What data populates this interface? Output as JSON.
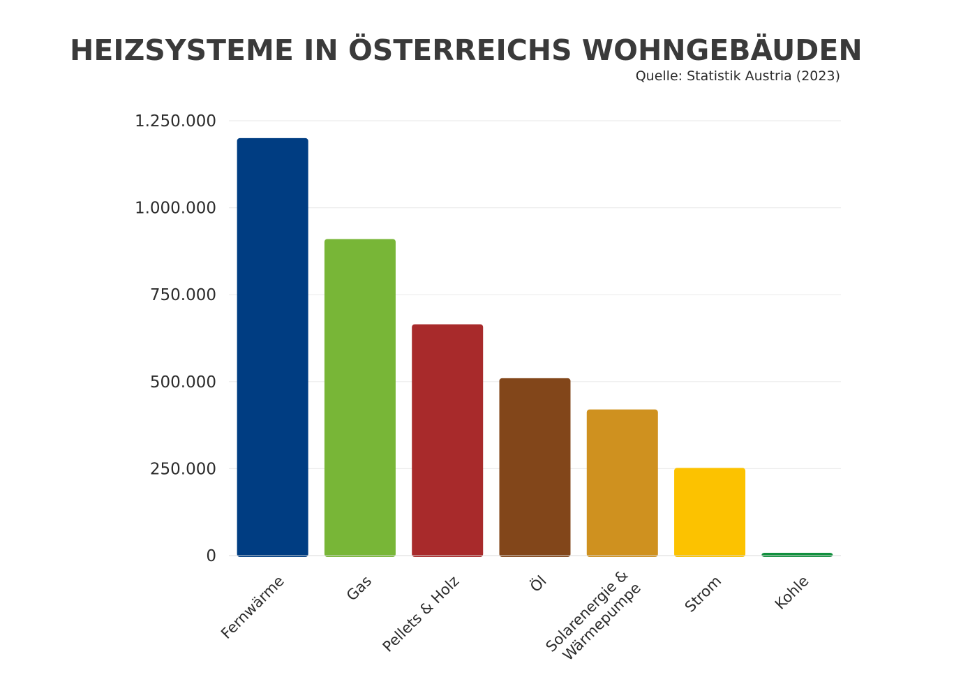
{
  "header": {
    "title": "HEIZSYSTEME IN ÖSTERREICHS WOHNGEBÄUDEN",
    "source": "Quelle: Statistik Austria (2023)"
  },
  "chart_data": {
    "type": "bar",
    "title": "HEIZSYSTEME IN ÖSTERREICHS WOHNGEBÄUDEN",
    "subtitle": "Quelle: Statistik Austria (2023)",
    "xlabel": "",
    "ylabel": "",
    "ylim": [
      0,
      1250000
    ],
    "yticks": [
      0,
      250000,
      500000,
      750000,
      1000000,
      1250000
    ],
    "ytick_labels": [
      "0",
      "250.000",
      "500.000",
      "750.000",
      "1.000.000",
      "1.250.000"
    ],
    "grid": true,
    "legend": "none",
    "categories": [
      "Fernwärme",
      "Gas",
      "Pellets & Holz",
      "Öl",
      "Solarenergie & Wärmepumpe",
      "Strom",
      "Kohle"
    ],
    "category_lines": [
      [
        "Fernwärme"
      ],
      [
        "Gas"
      ],
      [
        "Pellets & Holz"
      ],
      [
        "Öl"
      ],
      [
        "Solarenergie &",
        "Wärmepumpe"
      ],
      [
        "Strom"
      ],
      [
        "Kohle"
      ]
    ],
    "values": [
      1200000,
      910000,
      665000,
      510000,
      420000,
      252000,
      8000
    ],
    "colors": [
      "#003d82",
      "#78b637",
      "#a82a2b",
      "#82461a",
      "#cf911f",
      "#fcc200",
      "#12903e"
    ]
  }
}
